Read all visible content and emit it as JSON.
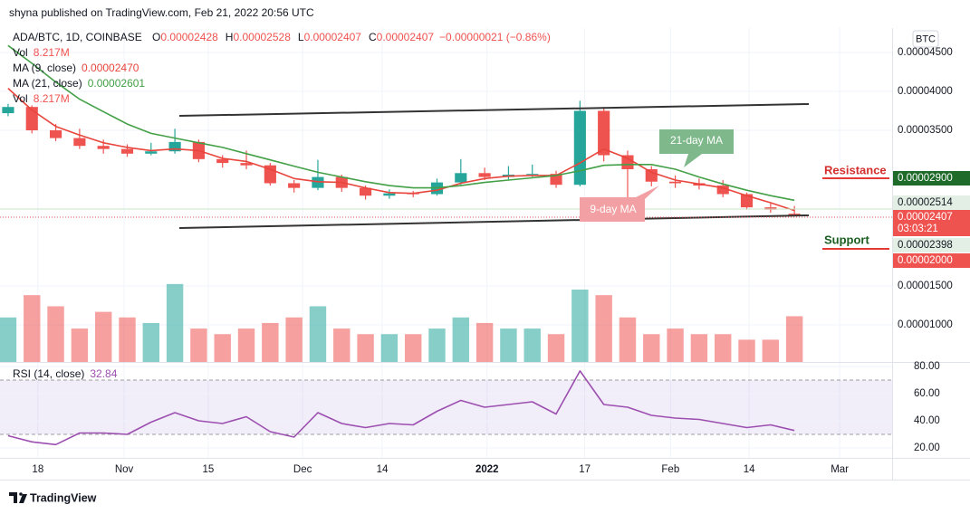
{
  "publisher": "shyna published on TradingView.com, Feb 21, 2022 20:56 UTC",
  "header": {
    "symbol": "ADA/BTC, 1D, COINBASE",
    "ohlc": [
      {
        "label": "O",
        "value": "0.00002428"
      },
      {
        "label": "H",
        "value": "0.00002528"
      },
      {
        "label": "L",
        "value": "0.00002407"
      },
      {
        "label": "C",
        "value": "0.00002407"
      }
    ],
    "change": "−0.00000021 (−0.86%)"
  },
  "legend": [
    {
      "label": "Vol",
      "value": "8.217M"
    },
    {
      "label": "MA (9, close)",
      "value": "0.00002470"
    },
    {
      "label": "MA (21, close)",
      "value": "0.00002601"
    },
    {
      "label": "Vol",
      "value": "8.217M"
    }
  ],
  "currency": "BTC",
  "annotations": {
    "ma21": "21-day MA",
    "ma9": "9-day MA",
    "resistance": "Resistance",
    "support": "Support"
  },
  "price_tags": [
    {
      "label": "0.00002900",
      "color": "#1e6b2a"
    },
    {
      "label": "0.00002514",
      "color": "#e3efe4"
    },
    {
      "label": "0.00002407",
      "color": "#ef5350"
    },
    {
      "label": "03:03:21",
      "color": "#ef5350"
    },
    {
      "label": "0.00002398",
      "color": "#e3efe4"
    },
    {
      "label": "0.00002000",
      "color": "#ef5350"
    }
  ],
  "brand": "TradingView",
  "chart_data": [
    {
      "type": "candlestick",
      "categories": [
        null,
        null,
        null,
        null,
        null,
        null,
        null,
        null,
        null,
        null,
        null,
        null,
        null,
        null,
        null,
        null,
        null,
        null,
        null,
        null,
        null,
        null,
        null,
        null,
        null,
        null,
        null,
        null,
        null,
        null,
        null,
        null,
        null,
        null
      ],
      "open": [
        3.72e-05,
        3.8e-05,
        3.5e-05,
        3.4e-05,
        3.3e-05,
        3.26e-05,
        3.2e-05,
        3.23e-05,
        3.35e-05,
        3.13e-05,
        3.08e-05,
        3.05e-05,
        2.82e-05,
        2.76e-05,
        2.9e-05,
        2.76e-05,
        2.66e-05,
        2.69e-05,
        2.68e-05,
        2.83e-05,
        2.95e-05,
        2.9e-05,
        2.93e-05,
        2.94e-05,
        2.8e-05,
        3.75e-05,
        3.18e-05,
        3e-05,
        2.84e-05,
        2.82e-05,
        2.79e-05,
        2.68e-05,
        2.51e-05,
        2.428e-05
      ],
      "high": [
        3.84e-05,
        3.82e-05,
        3.58e-05,
        3.52e-05,
        3.38e-05,
        3.32e-05,
        3.34e-05,
        3.52e-05,
        3.38e-05,
        3.18e-05,
        3.24e-05,
        3.08e-05,
        2.86e-05,
        3.12e-05,
        2.93e-05,
        2.79e-05,
        2.74e-05,
        2.72e-05,
        2.88e-05,
        3.13e-05,
        3.02e-05,
        3.04e-05,
        3.06e-05,
        2.98e-05,
        3.88e-05,
        3.8e-05,
        3.24e-05,
        3.04e-05,
        2.92e-05,
        2.88e-05,
        2.86e-05,
        2.7e-05,
        2.56e-05,
        2.528e-05
      ],
      "low": [
        3.68e-05,
        3.46e-05,
        3.36e-05,
        3.26e-05,
        3.2e-05,
        3.16e-05,
        3.18e-05,
        3.2e-05,
        3.09e-05,
        3.02e-05,
        3e-05,
        2.79e-05,
        2.7e-05,
        2.73e-05,
        2.71e-05,
        2.61e-05,
        2.62e-05,
        2.64e-05,
        2.66e-05,
        2.8e-05,
        2.86e-05,
        2.87e-05,
        2.9e-05,
        2.76e-05,
        2.78e-05,
        3.1e-05,
        2.64e-05,
        2.78e-05,
        2.76e-05,
        2.74e-05,
        2.64e-05,
        2.48e-05,
        2.44e-05,
        2.407e-05
      ],
      "close": [
        3.8e-05,
        3.5e-05,
        3.4e-05,
        3.3e-05,
        3.26e-05,
        3.2e-05,
        3.23e-05,
        3.35e-05,
        3.13e-05,
        3.08e-05,
        3.05e-05,
        2.82e-05,
        2.76e-05,
        2.9e-05,
        2.76e-05,
        2.66e-05,
        2.69e-05,
        2.68e-05,
        2.83e-05,
        2.95e-05,
        2.9e-05,
        2.93e-05,
        2.94e-05,
        2.8e-05,
        3.75e-05,
        3.18e-05,
        3e-05,
        2.84e-05,
        2.82e-05,
        2.79e-05,
        2.68e-05,
        2.51e-05,
        2.48e-05,
        2.407e-05
      ],
      "up_color": "#26a69a",
      "down_color": "#ef5350",
      "series": [
        {
          "name": "MA (9, close)",
          "color": "#e8453c",
          "values": [
            4.04e-05,
            3.76e-05,
            3.55e-05,
            3.44e-05,
            3.34e-05,
            3.28e-05,
            3.24e-05,
            3.26e-05,
            3.24e-05,
            3.14e-05,
            3.1e-05,
            3e-05,
            2.88e-05,
            2.84e-05,
            2.83e-05,
            2.76e-05,
            2.7e-05,
            2.69e-05,
            2.73e-05,
            2.82e-05,
            2.88e-05,
            2.91e-05,
            2.92e-05,
            2.92e-05,
            3.08e-05,
            3.26e-05,
            3.14e-05,
            2.96e-05,
            2.86e-05,
            2.81e-05,
            2.76e-05,
            2.66e-05,
            2.57e-05,
            2.47e-05
          ]
        },
        {
          "name": "MA (21, close)",
          "color": "#43a047",
          "values": [
            4.59e-05,
            4.36e-05,
            4.12e-05,
            3.9e-05,
            3.74e-05,
            3.58e-05,
            3.46e-05,
            3.4e-05,
            3.34e-05,
            3.28e-05,
            3.2e-05,
            3.12e-05,
            3.04e-05,
            2.96e-05,
            2.9e-05,
            2.84e-05,
            2.79e-05,
            2.76e-05,
            2.76e-05,
            2.79e-05,
            2.83e-05,
            2.86e-05,
            2.89e-05,
            2.92e-05,
            2.98e-05,
            3.05e-05,
            3.06e-05,
            3.06e-05,
            3e-05,
            2.9e-05,
            2.81e-05,
            2.73e-05,
            2.66e-05,
            2.601e-05
          ]
        }
      ],
      "volume": {
        "values": [
          8,
          12,
          10,
          6,
          9,
          8,
          7,
          14,
          6,
          5,
          6,
          7,
          8,
          10,
          6,
          5,
          5,
          5,
          6,
          8,
          7,
          6,
          6,
          5,
          13,
          12,
          8,
          5,
          6,
          5,
          5,
          4,
          4,
          8.217
        ],
        "ylim": [
          0,
          26
        ]
      },
      "ylim": [
        5.23e-06,
        4.814e-05
      ],
      "yticks": [
        {
          "value": 4.5e-05,
          "label": "0.00004500"
        },
        {
          "value": 4e-05,
          "label": "0.00004000"
        },
        {
          "value": 3.5e-05,
          "label": "0.00003500"
        },
        {
          "value": 1.5e-05,
          "label": "0.00001500"
        },
        {
          "value": 1e-05,
          "label": "0.00001000"
        }
      ],
      "grid": true
    },
    {
      "type": "line",
      "series": [
        {
          "name": "RSI (14, close)",
          "value_label": "32.84",
          "color": "#9c4fb0",
          "values": [
            29,
            24.5,
            22.5,
            31,
            31,
            30,
            39,
            46,
            40,
            38,
            43,
            32,
            28,
            46,
            38,
            35,
            38,
            37,
            47,
            55,
            50,
            52,
            54,
            45,
            76.7,
            52,
            50,
            44,
            42,
            41,
            38,
            35,
            37,
            32.84
          ]
        }
      ],
      "band": [
        30,
        70
      ],
      "ylim": [
        12.67,
        83.33
      ],
      "yticks": [
        {
          "value": 80,
          "label": "80.00"
        },
        {
          "value": 60,
          "label": "60.00"
        },
        {
          "value": 40,
          "label": "40.00"
        },
        {
          "value": 20,
          "label": "20.00"
        }
      ],
      "xlim": [
        -0.34,
        37.1
      ],
      "xticks": [
        {
          "value": 1.25,
          "label": "18"
        },
        {
          "value": 4.87,
          "label": "Nov"
        },
        {
          "value": 8.4,
          "label": "15"
        },
        {
          "value": 12.36,
          "label": "Dec"
        },
        {
          "value": 15.7,
          "label": "14"
        },
        {
          "value": 20.1,
          "label": "2022"
        },
        {
          "value": 24.2,
          "label": "17"
        },
        {
          "value": 27.8,
          "label": "Feb"
        },
        {
          "value": 31.1,
          "label": "14"
        },
        {
          "value": 34.9,
          "label": "Mar"
        }
      ],
      "grid": true
    }
  ]
}
